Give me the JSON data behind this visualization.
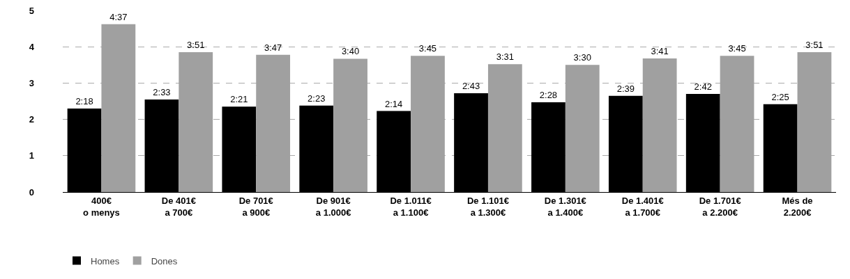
{
  "chart_data": {
    "type": "bar",
    "categories": [
      "400€\no menys",
      "De 401€\na 700€",
      "De 701€\na 900€",
      "De 901€\na 1.000€",
      "De 1.011€\na 1.100€",
      "De 1.101€\na 1.300€",
      "De 1.301€\na 1.400€",
      "De 1.401€\na 1.700€",
      "De 1.701€\na 2.200€",
      "Més de\n2.200€"
    ],
    "series": [
      {
        "name": "Homes",
        "color": "#000000",
        "values": [
          2.3,
          2.55,
          2.35,
          2.38,
          2.23,
          2.72,
          2.47,
          2.65,
          2.7,
          2.42
        ],
        "value_labels": [
          "2:18",
          "2:33",
          "2:21",
          "2:23",
          "2:14",
          "2:43",
          "2:28",
          "2:39",
          "2:42",
          "2:25"
        ]
      },
      {
        "name": "Dones",
        "color": "#a0a0a0",
        "values": [
          4.62,
          3.85,
          3.78,
          3.67,
          3.75,
          3.52,
          3.5,
          3.68,
          3.75,
          3.85
        ],
        "value_labels": [
          "4:37",
          "3:51",
          "3:47",
          "3:40",
          "3:45",
          "3:31",
          "3:30",
          "3:41",
          "3:45",
          "3:51"
        ]
      }
    ],
    "ylim": [
      0,
      5
    ],
    "yticks": [
      0,
      1,
      2,
      3,
      4,
      5
    ],
    "grid": "y",
    "legend": "bottom left"
  }
}
